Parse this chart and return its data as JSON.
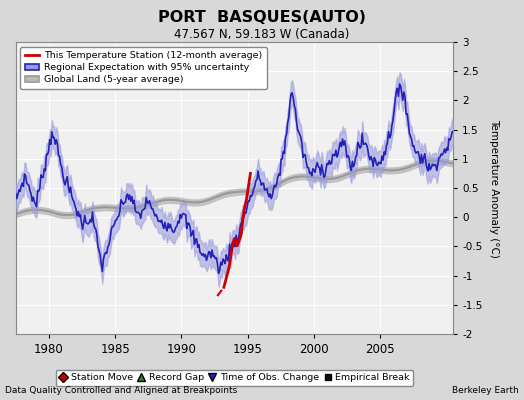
{
  "title": "PORT  BASQUES(AUTO)",
  "subtitle": "47.567 N, 59.183 W (Canada)",
  "ylabel": "Temperature Anomaly (°C)",
  "footer_left": "Data Quality Controlled and Aligned at Breakpoints",
  "footer_right": "Berkeley Earth",
  "xlim": [
    1977.5,
    2010.5
  ],
  "ylim": [
    -2.0,
    3.0
  ],
  "yticks": [
    -2,
    -1.5,
    -1,
    -0.5,
    0,
    0.5,
    1,
    1.5,
    2,
    2.5,
    3
  ],
  "xticks": [
    1980,
    1985,
    1990,
    1995,
    2000,
    2005
  ],
  "bg_color": "#d8d8d8",
  "plot_bg_color": "#f0f0f0",
  "regional_color": "#2222bb",
  "regional_fill_color": "#9999dd",
  "station_color": "#cc0000",
  "global_color": "#999999",
  "global_fill_color": "#bbbbbb",
  "grid_color": "#ffffff"
}
